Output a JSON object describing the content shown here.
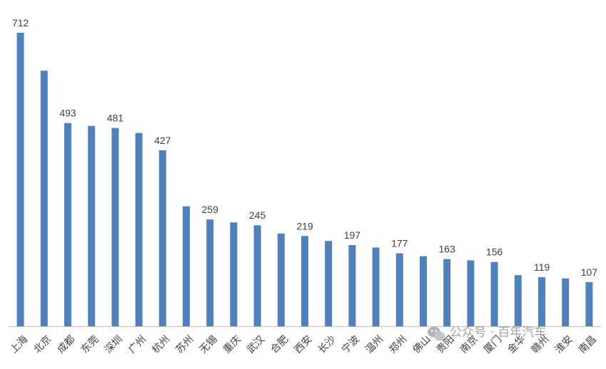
{
  "chart_data": {
    "type": "bar",
    "categories": [
      "上海",
      "北京",
      "成都",
      "东莞",
      "深圳",
      "广州",
      "杭州",
      "苏州",
      "无锡",
      "重庆",
      "武汉",
      "合肥",
      "西安",
      "长沙",
      "宁波",
      "温州",
      "郑州",
      "佛山",
      "贵阳",
      "南京",
      "厦门",
      "金华",
      "赣州",
      "淮安",
      "南昌"
    ],
    "values": [
      712,
      620,
      493,
      486,
      481,
      469,
      427,
      291,
      259,
      252,
      245,
      225,
      219,
      207,
      197,
      191,
      177,
      170,
      163,
      160,
      156,
      124,
      119,
      116,
      107
    ],
    "data_labels": [
      "712",
      "",
      "493",
      "",
      "481",
      "",
      "427",
      "",
      "259",
      "",
      "245",
      "",
      "219",
      "",
      "197",
      "",
      "177",
      "",
      "163",
      "",
      "156",
      "",
      "119",
      "",
      "107"
    ],
    "ylim": [
      0,
      712
    ],
    "grid": false,
    "legend": "none",
    "bar_color": "#4F81BD"
  },
  "watermark": {
    "text": "公众号 · 百年汽车",
    "icon": "wechat-icon"
  }
}
